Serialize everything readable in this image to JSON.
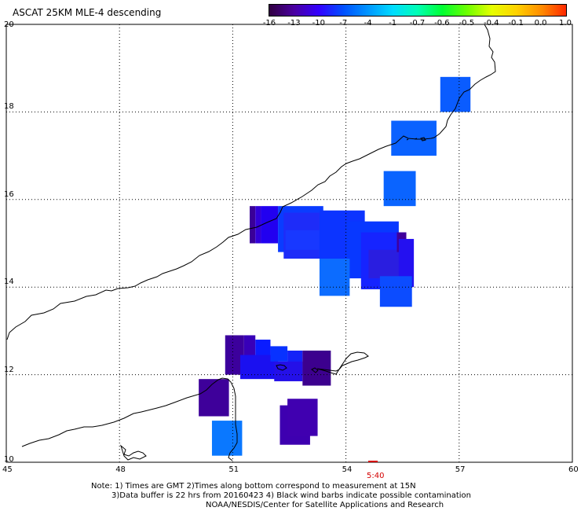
{
  "title": "ASCAT 25KM MLE-4 descending",
  "legend": {
    "colors": [
      "#300040",
      "#4a00a0",
      "#3200ff",
      "#0050ff",
      "#0096ff",
      "#00dcff",
      "#00ffb4",
      "#00ff32",
      "#6eff00",
      "#e6ff00",
      "#ffd200",
      "#ff8c00",
      "#ff2800"
    ],
    "labels": [
      "-16",
      "-13",
      "-10",
      "-7",
      "-4",
      "-1",
      "-0.7",
      "-0.6",
      "-0.5",
      "-0.4",
      "-0.1",
      "0.0",
      "1.0"
    ]
  },
  "axes": {
    "lat_labels": [
      "20",
      "18",
      "16",
      "14",
      "12",
      "10"
    ],
    "lon_labels": [
      "45",
      "48",
      "51",
      "54",
      "57",
      "60"
    ],
    "lat_range": [
      10,
      20
    ],
    "lon_range": [
      45,
      60
    ]
  },
  "time_marker": {
    "label": "5:40",
    "lon": 54.8
  },
  "notes": {
    "line1": "Note: 1) Times are GMT 2)Times along bottom correspond to measurement at 15N",
    "line2": "3)Data buffer is 22 hrs from 20160423 4) Black wind barbs indicate possible contamination",
    "line3": "NOAA/NESDIS/Center for Satellite Applications and Research"
  },
  "swath_cells": [
    {
      "lon0": 56.5,
      "lon1": 57.3,
      "lat0": 18.0,
      "lat1": 18.8,
      "color": "#0a5cff"
    },
    {
      "lon0": 55.2,
      "lon1": 56.4,
      "lat0": 17.0,
      "lat1": 17.8,
      "color": "#0a62ff"
    },
    {
      "lon0": 55.0,
      "lon1": 55.85,
      "lat0": 15.85,
      "lat1": 16.65,
      "color": "#0a64ff"
    },
    {
      "lon0": 51.45,
      "lon1": 51.6,
      "lat0": 15.0,
      "lat1": 15.85,
      "color": "#3a0098"
    },
    {
      "lon0": 51.6,
      "lon1": 51.75,
      "lat0": 15.0,
      "lat1": 15.85,
      "color": "#3200d8"
    },
    {
      "lon0": 51.75,
      "lon1": 52.2,
      "lat0": 15.0,
      "lat1": 15.85,
      "color": "#2200f0"
    },
    {
      "lon0": 52.2,
      "lon1": 53.4,
      "lat0": 14.8,
      "lat1": 15.85,
      "color": "#0a3cff"
    },
    {
      "lon0": 52.35,
      "lon1": 53.8,
      "lat0": 14.65,
      "lat1": 15.7,
      "color": "#1e2cf8"
    },
    {
      "lon0": 52.4,
      "lon1": 53.3,
      "lat0": 14.85,
      "lat1": 15.3,
      "color": "#1838ff"
    },
    {
      "lon0": 53.3,
      "lon1": 54.5,
      "lat0": 14.6,
      "lat1": 15.75,
      "color": "#0c34ff"
    },
    {
      "lon0": 54.0,
      "lon1": 55.4,
      "lat0": 14.2,
      "lat1": 15.5,
      "color": "#0838ff"
    },
    {
      "lon0": 54.4,
      "lon1": 55.6,
      "lat0": 13.95,
      "lat1": 15.25,
      "color": "#1624ff"
    },
    {
      "lon0": 54.6,
      "lon1": 55.5,
      "lat0": 14.2,
      "lat1": 14.85,
      "color": "#2a1ee0"
    },
    {
      "lon0": 55.35,
      "lon1": 55.6,
      "lat0": 14.8,
      "lat1": 15.25,
      "color": "#40009c"
    },
    {
      "lon0": 55.4,
      "lon1": 55.8,
      "lat0": 14.0,
      "lat1": 15.1,
      "color": "#2410f0"
    },
    {
      "lon0": 53.3,
      "lon1": 54.1,
      "lat0": 13.8,
      "lat1": 14.65,
      "color": "#0c6cff"
    },
    {
      "lon0": 54.9,
      "lon1": 55.75,
      "lat0": 13.55,
      "lat1": 14.25,
      "color": "#0c4cff"
    },
    {
      "lon0": 50.1,
      "lon1": 50.9,
      "lat0": 11.05,
      "lat1": 11.9,
      "color": "#3e009a"
    },
    {
      "lon0": 50.45,
      "lon1": 51.25,
      "lat0": 10.15,
      "lat1": 10.95,
      "color": "#0a78ff"
    },
    {
      "lon0": 50.8,
      "lon1": 51.3,
      "lat0": 12.0,
      "lat1": 12.9,
      "color": "#3c009c"
    },
    {
      "lon0": 51.3,
      "lon1": 51.6,
      "lat0": 12.1,
      "lat1": 12.9,
      "color": "#3800b8"
    },
    {
      "lon0": 51.6,
      "lon1": 52.0,
      "lat0": 12.1,
      "lat1": 12.8,
      "color": "#0a1cff"
    },
    {
      "lon0": 51.2,
      "lon1": 52.2,
      "lat0": 11.9,
      "lat1": 12.45,
      "color": "#1a10f0"
    },
    {
      "lon0": 52.0,
      "lon1": 52.45,
      "lat0": 12.3,
      "lat1": 12.65,
      "color": "#0832ff"
    },
    {
      "lon0": 52.45,
      "lon1": 52.85,
      "lat0": 12.0,
      "lat1": 12.55,
      "color": "#1422f8"
    },
    {
      "lon0": 52.1,
      "lon1": 52.85,
      "lat0": 11.85,
      "lat1": 12.3,
      "color": "#2410e8"
    },
    {
      "lon0": 52.85,
      "lon1": 53.6,
      "lat0": 11.75,
      "lat1": 12.55,
      "color": "#3c008e"
    },
    {
      "lon0": 52.25,
      "lon1": 53.05,
      "lat0": 10.4,
      "lat1": 11.3,
      "color": "#3e00b0"
    },
    {
      "lon0": 52.45,
      "lon1": 53.25,
      "lat0": 10.6,
      "lat1": 11.45,
      "color": "#4000b0"
    }
  ]
}
